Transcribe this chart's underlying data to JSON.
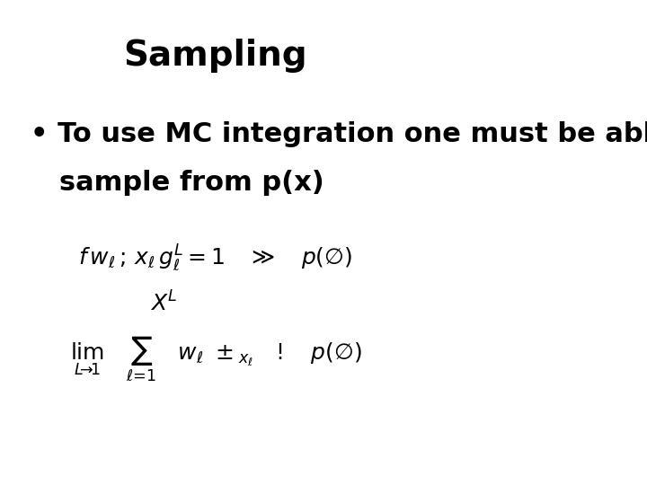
{
  "title": "Sampling",
  "title_fontsize": 28,
  "title_fontweight": "bold",
  "bullet_text_line1": "• To use MC integration one must be able to",
  "bullet_text_line2": "   sample from p(x)",
  "bullet_fontsize": 22,
  "bullet_fontweight": "bold",
  "formula1": "$f(w_{\\ell}; x_{\\ell}) g_{\\ell}^{L} = 1 \\quad \\gg \\quad p(\\phi)$",
  "formula2": "$X^{L}$",
  "formula3": "$\\lim_{L \\to 1} \\sum_{\\ell=1} w_{\\ell} \\pm x_{\\ell} \\quad ! \\quad p(\\phi)$",
  "bg_color": "#ffffff",
  "text_color": "#000000",
  "formula_fontsize": 18
}
